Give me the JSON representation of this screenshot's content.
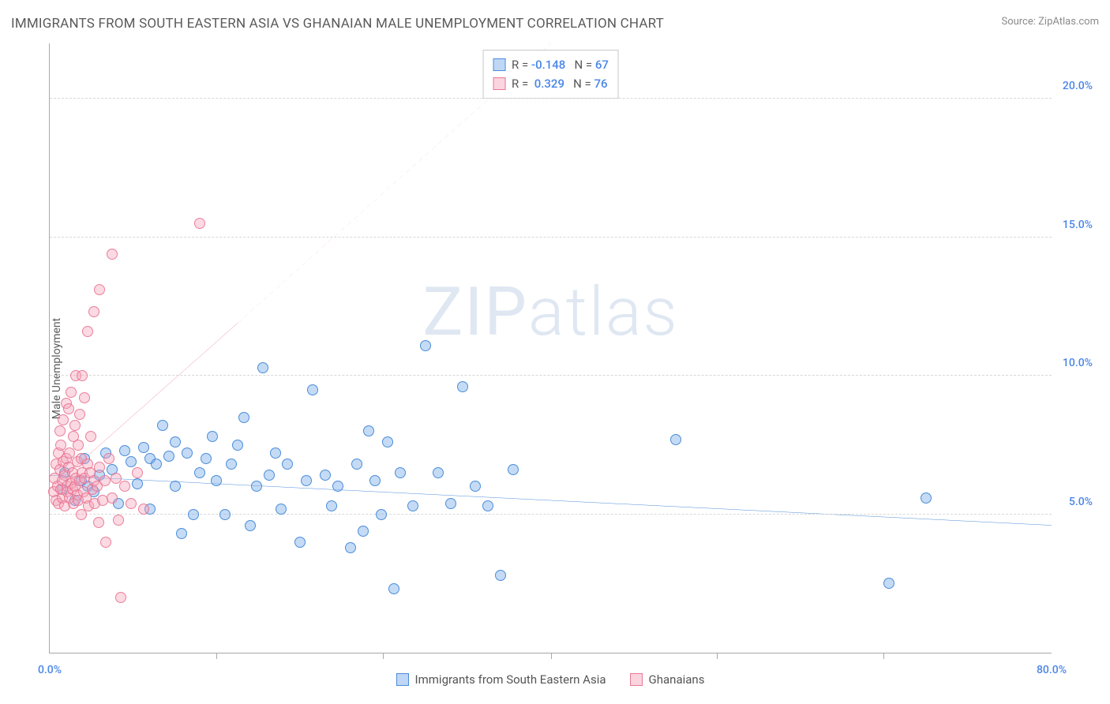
{
  "title": "IMMIGRANTS FROM SOUTH EASTERN ASIA VS GHANAIAN MALE UNEMPLOYMENT CORRELATION CHART",
  "source_label": "Source: ZipAtlas.com",
  "ylabel": "Male Unemployment",
  "watermark": "ZIPatlas",
  "chart": {
    "type": "scatter",
    "xlim": [
      0,
      80
    ],
    "ylim": [
      0,
      22
    ],
    "x_ticks": [
      0,
      80
    ],
    "x_tick_labels": [
      "0.0%",
      "80.0%"
    ],
    "x_minor_ticks": [
      13.3,
      26.6,
      40,
      53.3,
      66.6
    ],
    "y_ticks": [
      5,
      10,
      15,
      20
    ],
    "y_tick_labels": [
      "5.0%",
      "10.0%",
      "15.0%",
      "20.0%"
    ],
    "background_color": "#ffffff",
    "grid_color": "#d8d8d8",
    "axis_color": "#a8a8a8",
    "tick_label_color": "#4a86e8",
    "series": [
      {
        "name": "Immigrants from South Eastern Asia",
        "color_fill": "rgba(127,176,233,0.45)",
        "color_stroke": "rgba(61,132,214,0.9)",
        "marker_size": 14,
        "R": "-0.148",
        "N": "67",
        "trendline": {
          "x1": 0,
          "y1": 6.4,
          "x2": 80,
          "y2": 4.6,
          "stroke": "#2f78d6",
          "width": 3,
          "dash": ""
        },
        "points": [
          [
            1,
            5.9
          ],
          [
            1.2,
            6.5
          ],
          [
            2,
            5.5
          ],
          [
            2.5,
            6.2
          ],
          [
            2.8,
            7.0
          ],
          [
            3,
            6.0
          ],
          [
            3.5,
            5.8
          ],
          [
            4,
            6.4
          ],
          [
            4.5,
            7.2
          ],
          [
            5,
            6.6
          ],
          [
            5.5,
            5.4
          ],
          [
            6,
            7.3
          ],
          [
            6.5,
            6.9
          ],
          [
            7,
            6.1
          ],
          [
            7.5,
            7.4
          ],
          [
            8,
            7.0
          ],
          [
            8,
            5.2
          ],
          [
            8.5,
            6.8
          ],
          [
            9,
            8.2
          ],
          [
            9.5,
            7.1
          ],
          [
            10,
            6.0
          ],
          [
            10,
            7.6
          ],
          [
            10.5,
            4.3
          ],
          [
            11,
            7.2
          ],
          [
            11.5,
            5.0
          ],
          [
            12,
            6.5
          ],
          [
            12.5,
            7.0
          ],
          [
            13,
            7.8
          ],
          [
            13.3,
            6.2
          ],
          [
            14,
            5.0
          ],
          [
            14.5,
            6.8
          ],
          [
            15,
            7.5
          ],
          [
            15.5,
            8.5
          ],
          [
            16,
            4.6
          ],
          [
            16.5,
            6.0
          ],
          [
            17,
            10.3
          ],
          [
            17.5,
            6.4
          ],
          [
            18,
            7.2
          ],
          [
            18.5,
            5.2
          ],
          [
            19,
            6.8
          ],
          [
            20,
            4.0
          ],
          [
            20.5,
            6.2
          ],
          [
            21,
            9.5
          ],
          [
            22,
            6.4
          ],
          [
            22.5,
            5.3
          ],
          [
            23,
            6.0
          ],
          [
            24,
            3.8
          ],
          [
            24.5,
            6.8
          ],
          [
            25,
            4.4
          ],
          [
            25.5,
            8.0
          ],
          [
            26,
            6.2
          ],
          [
            26.5,
            5.0
          ],
          [
            27,
            7.6
          ],
          [
            27.5,
            2.3
          ],
          [
            28,
            6.5
          ],
          [
            29,
            5.3
          ],
          [
            30,
            11.1
          ],
          [
            31,
            6.5
          ],
          [
            32,
            5.4
          ],
          [
            33,
            9.6
          ],
          [
            34,
            6.0
          ],
          [
            35,
            5.3
          ],
          [
            36,
            2.8
          ],
          [
            37,
            6.6
          ],
          [
            50,
            7.7
          ],
          [
            67,
            2.5
          ],
          [
            70,
            5.6
          ]
        ]
      },
      {
        "name": "Ghanaians",
        "color_fill": "rgba(245,162,184,0.4)",
        "color_stroke": "rgba(232,110,140,0.85)",
        "marker_size": 14,
        "R": "0.329",
        "N": "76",
        "trendline": {
          "x1": 0,
          "y1": 5.9,
          "x2": 15,
          "y2": 11.9,
          "stroke": "#e85c84",
          "width": 2.5,
          "dash": ""
        },
        "trendline_dash": {
          "x1": 15,
          "y1": 11.9,
          "x2": 40,
          "y2": 22,
          "stroke": "#e9a2b6",
          "width": 1.5,
          "dash": "6 5"
        },
        "points": [
          [
            0.3,
            5.8
          ],
          [
            0.4,
            6.3
          ],
          [
            0.5,
            5.5
          ],
          [
            0.5,
            6.8
          ],
          [
            0.6,
            6.0
          ],
          [
            0.7,
            7.2
          ],
          [
            0.7,
            5.4
          ],
          [
            0.8,
            6.6
          ],
          [
            0.8,
            8.0
          ],
          [
            0.9,
            5.9
          ],
          [
            0.9,
            7.5
          ],
          [
            1.0,
            6.2
          ],
          [
            1.0,
            5.6
          ],
          [
            1.1,
            6.9
          ],
          [
            1.1,
            8.4
          ],
          [
            1.2,
            6.4
          ],
          [
            1.2,
            5.3
          ],
          [
            1.3,
            7.0
          ],
          [
            1.3,
            9.0
          ],
          [
            1.4,
            6.0
          ],
          [
            1.4,
            5.8
          ],
          [
            1.5,
            6.7
          ],
          [
            1.5,
            8.8
          ],
          [
            1.6,
            5.6
          ],
          [
            1.6,
            7.2
          ],
          [
            1.7,
            6.1
          ],
          [
            1.7,
            9.4
          ],
          [
            1.8,
            5.9
          ],
          [
            1.8,
            6.5
          ],
          [
            1.9,
            7.8
          ],
          [
            1.9,
            5.4
          ],
          [
            2.0,
            6.0
          ],
          [
            2.0,
            8.2
          ],
          [
            2.1,
            6.3
          ],
          [
            2.1,
            10.0
          ],
          [
            2.2,
            5.7
          ],
          [
            2.2,
            6.9
          ],
          [
            2.3,
            7.5
          ],
          [
            2.3,
            5.5
          ],
          [
            2.4,
            8.6
          ],
          [
            2.4,
            6.2
          ],
          [
            2.5,
            5.0
          ],
          [
            2.5,
            7.0
          ],
          [
            2.6,
            6.5
          ],
          [
            2.6,
            10.0
          ],
          [
            2.7,
            5.8
          ],
          [
            2.8,
            6.3
          ],
          [
            2.8,
            9.2
          ],
          [
            2.9,
            5.6
          ],
          [
            3.0,
            6.8
          ],
          [
            3.0,
            11.6
          ],
          [
            3.1,
            5.3
          ],
          [
            3.2,
            6.5
          ],
          [
            3.3,
            7.8
          ],
          [
            3.4,
            5.9
          ],
          [
            3.5,
            6.2
          ],
          [
            3.5,
            12.3
          ],
          [
            3.6,
            5.4
          ],
          [
            3.8,
            6.0
          ],
          [
            3.9,
            4.7
          ],
          [
            4.0,
            6.7
          ],
          [
            4.0,
            13.1
          ],
          [
            4.2,
            5.5
          ],
          [
            4.4,
            6.2
          ],
          [
            4.5,
            4.0
          ],
          [
            4.7,
            7.0
          ],
          [
            5.0,
            5.6
          ],
          [
            5.0,
            14.4
          ],
          [
            5.3,
            6.3
          ],
          [
            5.5,
            4.8
          ],
          [
            5.7,
            2.0
          ],
          [
            6.0,
            6.0
          ],
          [
            6.5,
            5.4
          ],
          [
            7.0,
            6.5
          ],
          [
            7.5,
            5.2
          ],
          [
            12.0,
            15.5
          ]
        ]
      }
    ]
  },
  "stats_legend": {
    "rows": [
      {
        "swatch": "blue",
        "r_label": "R = ",
        "r_val": "-0.148",
        "n_label": "   N = ",
        "n_val": "67"
      },
      {
        "swatch": "pink",
        "r_label": "R = ",
        "r_val": " 0.329",
        "n_label": "   N = ",
        "n_val": "76"
      }
    ]
  },
  "bottom_legend": [
    {
      "swatch": "blue",
      "label": "Immigrants from South Eastern Asia"
    },
    {
      "swatch": "pink",
      "label": "Ghanaians"
    }
  ]
}
